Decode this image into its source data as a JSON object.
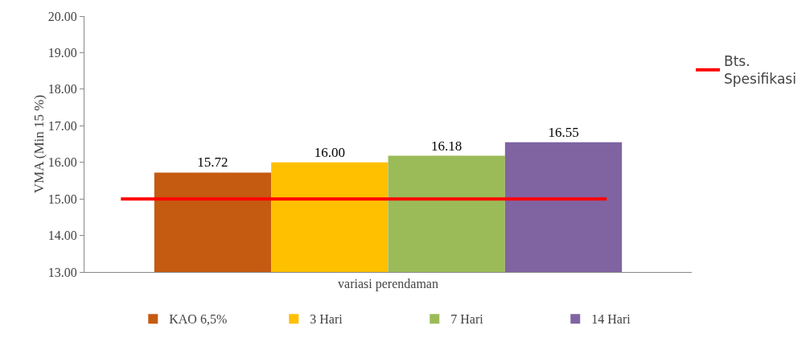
{
  "chart_data": {
    "type": "bar",
    "ylabel": "VMA (Min 15 %)",
    "categories": [
      "variasi perendaman"
    ],
    "series": [
      {
        "name": "KAO 6,5%",
        "color": "#c55a11",
        "values": [
          15.72
        ],
        "value_labels": [
          "15.72"
        ]
      },
      {
        "name": "3 Hari",
        "color": "#ffc000",
        "values": [
          16.0
        ],
        "value_labels": [
          "16.00"
        ]
      },
      {
        "name": "7 Hari",
        "color": "#9bbb59",
        "values": [
          16.18
        ],
        "value_labels": [
          "16.18"
        ]
      },
      {
        "name": "14 Hari",
        "color": "#8064a2",
        "values": [
          16.55
        ],
        "value_labels": [
          "16.55"
        ]
      }
    ],
    "ylim": [
      13,
      20
    ],
    "yticks": [
      {
        "value": 13,
        "label": "13.00"
      },
      {
        "value": 14,
        "label": "14.00"
      },
      {
        "value": 15,
        "label": "15.00"
      },
      {
        "value": 16,
        "label": "16.00"
      },
      {
        "value": 17,
        "label": "17.00"
      },
      {
        "value": 18,
        "label": "18.00"
      },
      {
        "value": 19,
        "label": "19.00"
      },
      {
        "value": 20,
        "label": "20.00"
      }
    ],
    "ref_lines": [
      {
        "axis": "y",
        "value": 15,
        "label": "Bts. Spesifikasi",
        "color": "#ff0000"
      }
    ],
    "grid": false,
    "legend": "bottom"
  }
}
